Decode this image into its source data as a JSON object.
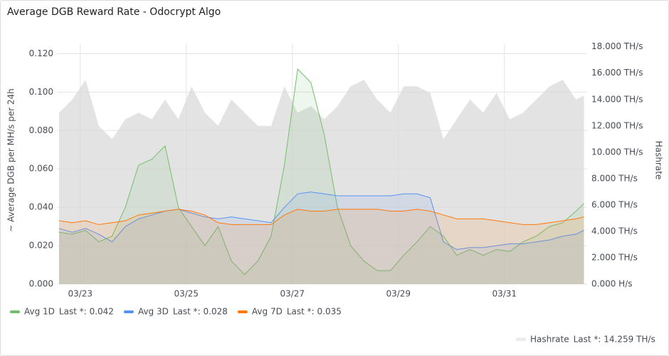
{
  "chart_data": {
    "type": "line",
    "title": "Average DGB Reward Rate - Odocrypt Algo",
    "ylabel": "~ Average DGB per MH/s per 24h",
    "y2label": "Hashrate",
    "x": [
      22.6,
      22.85,
      23.1,
      23.35,
      23.6,
      23.85,
      24.1,
      24.35,
      24.6,
      24.85,
      25.1,
      25.35,
      25.6,
      25.85,
      26.1,
      26.35,
      26.6,
      26.85,
      27.1,
      27.35,
      27.6,
      27.85,
      28.1,
      28.35,
      28.6,
      28.85,
      29.1,
      29.35,
      29.6,
      29.85,
      30.1,
      30.35,
      30.6,
      30.85,
      31.1,
      31.35,
      31.6,
      31.85,
      32.1,
      32.35,
      32.5
    ],
    "xlim": [
      22.56,
      32.56
    ],
    "xticks": [
      {
        "value": 23,
        "label": "03/23"
      },
      {
        "value": 25,
        "label": "03/25"
      },
      {
        "value": 27,
        "label": "03/27"
      },
      {
        "value": 29,
        "label": "03/29"
      },
      {
        "value": 31,
        "label": "03/31"
      }
    ],
    "ylim": [
      0,
      0.125
    ],
    "yticks": [
      {
        "value": 0,
        "label": "0.000"
      },
      {
        "value": 0.02,
        "label": "0.020"
      },
      {
        "value": 0.04,
        "label": "0.040"
      },
      {
        "value": 0.06,
        "label": "0.060"
      },
      {
        "value": 0.08,
        "label": "0.080"
      },
      {
        "value": 0.1,
        "label": "0.100"
      },
      {
        "value": 0.12,
        "label": "0.120"
      }
    ],
    "y2lim": [
      0,
      18.2
    ],
    "y2ticks": [
      {
        "value": 0,
        "label": "0.000 H/s"
      },
      {
        "value": 2,
        "label": "2.000 TH/s"
      },
      {
        "value": 4,
        "label": "4.000 TH/s"
      },
      {
        "value": 6,
        "label": "6.000 TH/s"
      },
      {
        "value": 8,
        "label": "8.000 TH/s"
      },
      {
        "value": 10,
        "label": "10.000 TH/s"
      },
      {
        "value": 12,
        "label": "12.000 TH/s"
      },
      {
        "value": 14,
        "label": "14.000 TH/s"
      },
      {
        "value": 16,
        "label": "16.000 TH/s"
      },
      {
        "value": 18,
        "label": "18.000 TH/s"
      }
    ],
    "grid": true,
    "series": [
      {
        "name": "Hashrate",
        "legend_last": "Last *: 14.259 TH/s",
        "axis": "y2",
        "color": "#d9d9d9",
        "values": [
          13,
          14,
          15.5,
          12,
          11,
          12.5,
          13,
          12.5,
          14,
          12.5,
          15,
          13,
          12,
          14,
          13,
          12,
          12,
          15,
          13,
          13.5,
          12.5,
          13.5,
          15,
          15.5,
          14,
          13,
          15,
          15,
          14.5,
          11,
          12.5,
          14,
          13,
          14.5,
          12.5,
          13,
          14,
          15,
          15.5,
          14,
          14.3
        ]
      },
      {
        "name": "Avg 1D",
        "legend_last": "Last *: 0.042",
        "color": "#73bf69",
        "values": [
          0.027,
          0.026,
          0.028,
          0.022,
          0.025,
          0.04,
          0.062,
          0.065,
          0.072,
          0.04,
          0.03,
          0.02,
          0.03,
          0.012,
          0.005,
          0.012,
          0.025,
          0.062,
          0.112,
          0.105,
          0.078,
          0.04,
          0.02,
          0.012,
          0.007,
          0.007,
          0.015,
          0.022,
          0.03,
          0.025,
          0.015,
          0.018,
          0.015,
          0.018,
          0.017,
          0.022,
          0.025,
          0.03,
          0.032,
          0.038,
          0.042
        ]
      },
      {
        "name": "Avg 3D",
        "legend_last": "Last *: 0.028",
        "color": "#5794f2",
        "values": [
          0.029,
          0.027,
          0.029,
          0.026,
          0.022,
          0.03,
          0.034,
          0.036,
          0.038,
          0.039,
          0.037,
          0.035,
          0.034,
          0.035,
          0.034,
          0.033,
          0.032,
          0.04,
          0.047,
          0.048,
          0.047,
          0.046,
          0.046,
          0.046,
          0.046,
          0.046,
          0.047,
          0.047,
          0.045,
          0.022,
          0.018,
          0.019,
          0.019,
          0.02,
          0.021,
          0.021,
          0.022,
          0.023,
          0.025,
          0.026,
          0.028
        ]
      },
      {
        "name": "Avg 7D",
        "legend_last": "Last *: 0.035",
        "color": "#ff780a",
        "values": [
          0.033,
          0.032,
          0.033,
          0.031,
          0.032,
          0.033,
          0.036,
          0.037,
          0.038,
          0.039,
          0.038,
          0.036,
          0.032,
          0.031,
          0.031,
          0.031,
          0.031,
          0.036,
          0.039,
          0.038,
          0.038,
          0.039,
          0.039,
          0.039,
          0.039,
          0.038,
          0.038,
          0.039,
          0.038,
          0.036,
          0.034,
          0.034,
          0.034,
          0.033,
          0.032,
          0.031,
          0.031,
          0.032,
          0.033,
          0.034,
          0.035
        ]
      }
    ]
  }
}
